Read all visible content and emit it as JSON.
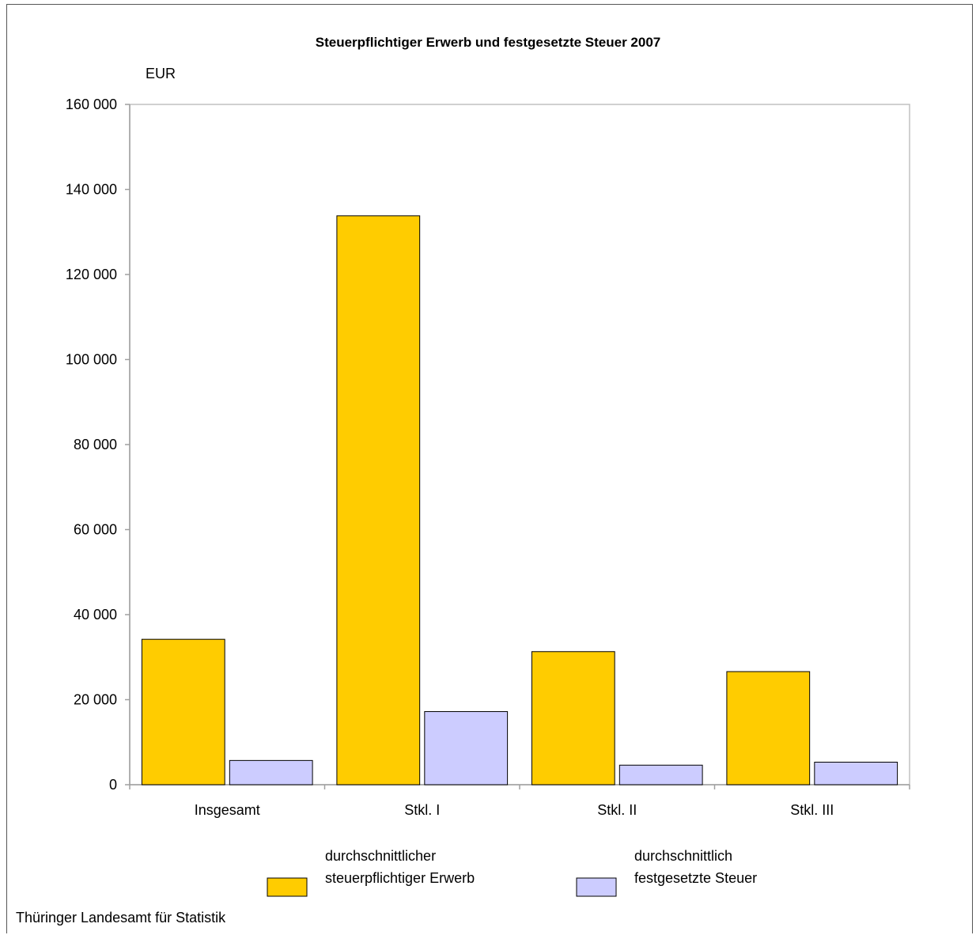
{
  "chart_data": {
    "type": "bar",
    "title": "Steuerpflichtiger Erwerb und festgesetzte Steuer 2007",
    "unit_label": "EUR",
    "categories": [
      "Insgesamt",
      "Stkl.  I",
      "Stkl.  II",
      "Stkl.  III"
    ],
    "series": [
      {
        "name_lines": [
          "durchschnittlicher",
          "steuerpflichtiger Erwerb"
        ],
        "color": "#FFCC00",
        "values": [
          34200,
          133800,
          31300,
          26600
        ]
      },
      {
        "name_lines": [
          "durchschnittlich",
          "festgesetzte Steuer"
        ],
        "color": "#CCCCFF",
        "values": [
          5700,
          17200,
          4600,
          5300
        ]
      }
    ],
    "ylim": [
      0,
      160000
    ],
    "yticks": [
      0,
      20000,
      40000,
      60000,
      80000,
      100000,
      120000,
      140000,
      160000
    ],
    "ytick_labels": [
      "0",
      "20 000",
      "40 000",
      "60 000",
      "80 000",
      "100 000",
      "120 000",
      "140 000",
      "160 000"
    ],
    "legend_position": "bottom",
    "grid": false
  },
  "footer": {
    "source": "Thüringer Landesamt für Statistik"
  }
}
